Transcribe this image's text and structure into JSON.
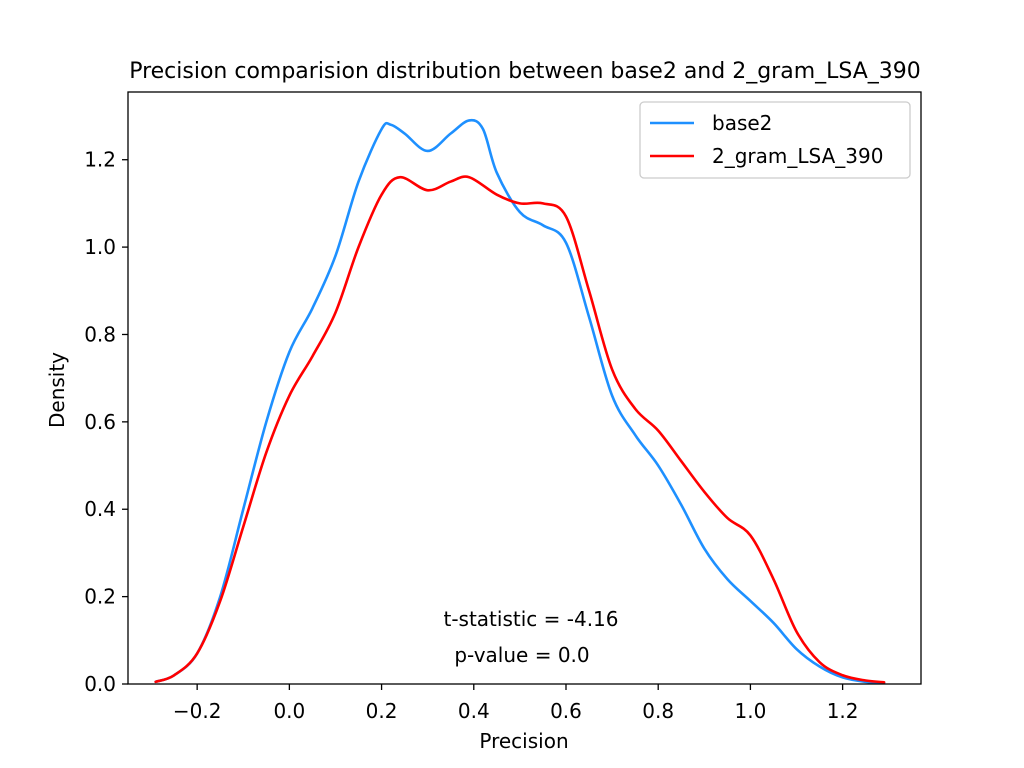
{
  "chart_data": {
    "type": "line",
    "title": "Precision comparision distribution between base2 and 2_gram_LSA_390",
    "xlabel": "Precision",
    "ylabel": "Density",
    "xlim": [
      -0.35,
      1.37
    ],
    "ylim": [
      0.0,
      1.355
    ],
    "xticks": [
      -0.2,
      0.0,
      0.2,
      0.4,
      0.6,
      0.8,
      1.0,
      1.2
    ],
    "xtick_labels": [
      "−0.2",
      "0.0",
      "0.2",
      "0.4",
      "0.6",
      "0.8",
      "1.0",
      "1.2"
    ],
    "yticks": [
      0.0,
      0.2,
      0.4,
      0.6,
      0.8,
      1.0,
      1.2
    ],
    "ytick_labels": [
      "0.0",
      "0.2",
      "0.4",
      "0.6",
      "0.8",
      "1.0",
      "1.2"
    ],
    "grid": false,
    "legend_position": "top-right",
    "series": [
      {
        "name": "base2",
        "color": "#1e90ff",
        "x": [
          -0.29,
          -0.25,
          -0.2,
          -0.15,
          -0.1,
          -0.05,
          0.0,
          0.05,
          0.1,
          0.15,
          0.2,
          0.22,
          0.25,
          0.3,
          0.35,
          0.39,
          0.42,
          0.45,
          0.5,
          0.55,
          0.6,
          0.65,
          0.7,
          0.75,
          0.8,
          0.85,
          0.9,
          0.95,
          1.0,
          1.05,
          1.1,
          1.15,
          1.2,
          1.25,
          1.29
        ],
        "y": [
          0.005,
          0.02,
          0.07,
          0.2,
          0.4,
          0.6,
          0.76,
          0.86,
          0.98,
          1.15,
          1.27,
          1.28,
          1.26,
          1.22,
          1.26,
          1.29,
          1.27,
          1.17,
          1.08,
          1.05,
          1.01,
          0.84,
          0.66,
          0.57,
          0.5,
          0.41,
          0.31,
          0.24,
          0.19,
          0.14,
          0.08,
          0.04,
          0.015,
          0.005,
          0.002
        ]
      },
      {
        "name": "2_gram_LSA_390",
        "color": "#ff0000",
        "x": [
          -0.29,
          -0.25,
          -0.2,
          -0.15,
          -0.1,
          -0.05,
          0.0,
          0.05,
          0.1,
          0.15,
          0.2,
          0.24,
          0.3,
          0.35,
          0.39,
          0.45,
          0.5,
          0.55,
          0.6,
          0.65,
          0.7,
          0.75,
          0.8,
          0.85,
          0.9,
          0.95,
          1.0,
          1.05,
          1.1,
          1.15,
          1.2,
          1.25,
          1.29
        ],
        "y": [
          0.005,
          0.02,
          0.07,
          0.19,
          0.36,
          0.53,
          0.66,
          0.75,
          0.85,
          1.0,
          1.12,
          1.16,
          1.13,
          1.15,
          1.16,
          1.12,
          1.1,
          1.1,
          1.07,
          0.9,
          0.72,
          0.63,
          0.58,
          0.51,
          0.44,
          0.38,
          0.34,
          0.24,
          0.12,
          0.05,
          0.02,
          0.008,
          0.004
        ]
      }
    ],
    "annotations": [
      "t-statistic = -4.16",
      "p-value = 0.0"
    ]
  }
}
